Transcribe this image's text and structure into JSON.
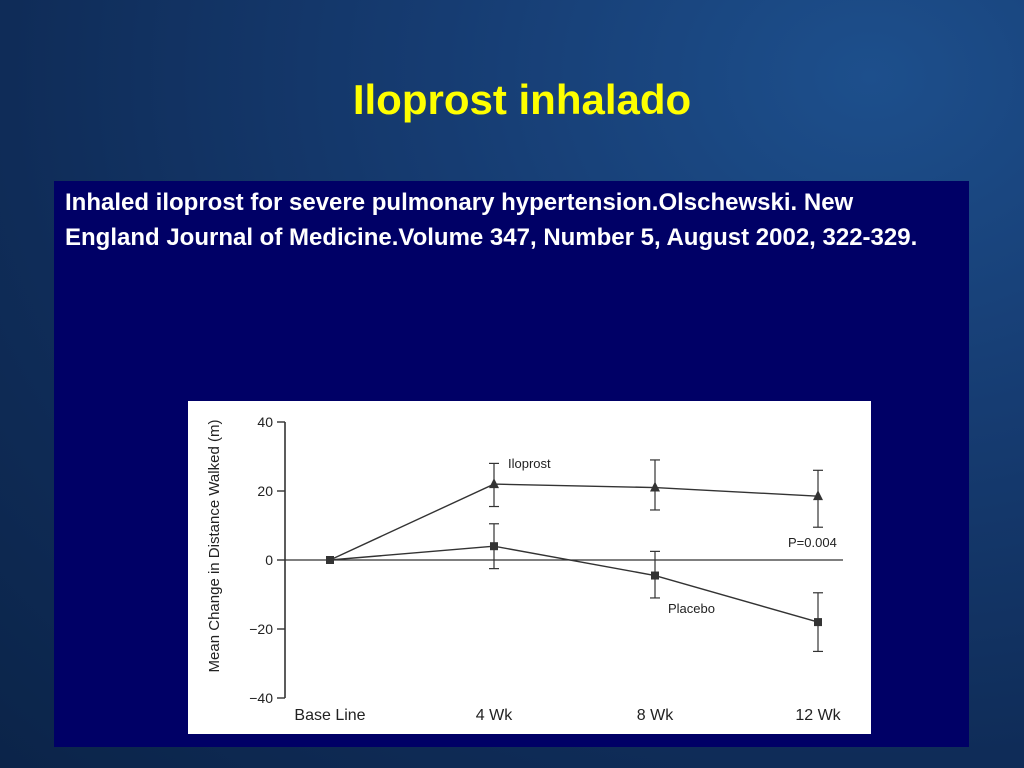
{
  "slide": {
    "title": "Iloprost inhalado",
    "citation": "Inhaled iloprost for severe pulmonary hypertension.Olschewski. New England Journal of Medicine.Volume 347, Number 5, August 2002, 322-329."
  },
  "chart_data": {
    "type": "line",
    "categories": [
      "Base Line",
      "4 Wk",
      "8 Wk",
      "12 Wk"
    ],
    "ylabel": "Mean Change in Distance Walked (m)",
    "xlabel": "",
    "ylim": [
      -40,
      40
    ],
    "yticks": [
      40,
      20,
      0,
      -20,
      -40
    ],
    "ytick_labels": [
      "40",
      "20",
      "0",
      "−20",
      "−40"
    ],
    "grid": false,
    "series": [
      {
        "name": "Iloprost",
        "marker": "triangle",
        "values": [
          0,
          22,
          21,
          18.5
        ],
        "err_low": [
          null,
          15.5,
          14.5,
          9.5
        ],
        "err_high": [
          null,
          28,
          29,
          26
        ]
      },
      {
        "name": "Placebo",
        "marker": "square",
        "values": [
          0,
          4,
          -4.5,
          -18
        ],
        "err_low": [
          null,
          -2.5,
          -11,
          -26.5
        ],
        "err_high": [
          null,
          10.5,
          2.5,
          -9.5
        ]
      }
    ],
    "annotations": [
      {
        "text": "P=0.004"
      }
    ],
    "colors": {
      "line": "#333333",
      "axis": "#333333"
    }
  }
}
